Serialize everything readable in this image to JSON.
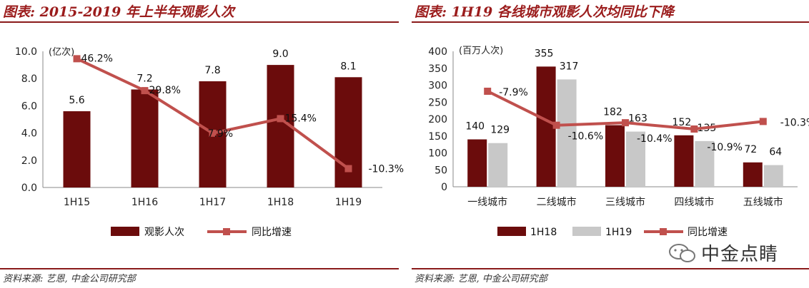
{
  "left": {
    "title": "图表: 2015-2019 年上半年观影人次",
    "source": "资料来源: 艺恩, 中金公司研究部",
    "chart_data": {
      "type": "bar",
      "categories": [
        "1H15",
        "1H16",
        "1H17",
        "1H18",
        "1H19"
      ],
      "series": [
        {
          "name": "观影人次",
          "type": "bar",
          "values": [
            5.6,
            7.2,
            7.8,
            9.0,
            8.1
          ],
          "color": "#6b0c0c",
          "labels": [
            "5.6",
            "7.2",
            "7.8",
            "9.0",
            "8.1"
          ]
        },
        {
          "name": "同比增速",
          "type": "line",
          "values": [
            46.2,
            29.8,
            7.9,
            15.4,
            -10.3
          ],
          "color": "#c0504d",
          "labels": [
            "46.2%",
            "29.8%",
            "7.9%",
            "15.4%",
            "-10.3%"
          ]
        }
      ],
      "ylabel": "(亿次)",
      "ylim": [
        0,
        10
      ],
      "yticks": [
        "0.0",
        "2.0",
        "4.0",
        "6.0",
        "8.0",
        "10.0"
      ],
      "legend": "bottom"
    }
  },
  "right": {
    "title": "图表: 1H19 各线城市观影人次均同比下降",
    "source": "资料来源: 艺恩, 中金公司研究部",
    "chart_data": {
      "type": "bar",
      "categories": [
        "一线城市",
        "二线城市",
        "三线城市",
        "四线城市",
        "五线城市"
      ],
      "series": [
        {
          "name": "1H18",
          "type": "bar",
          "values": [
            140,
            355,
            182,
            152,
            72
          ],
          "color": "#6b0c0c",
          "labels": [
            "140",
            "355",
            "182",
            "152",
            "72"
          ]
        },
        {
          "name": "1H19",
          "type": "bar",
          "values": [
            129,
            317,
            163,
            135,
            64
          ],
          "color": "#c8c8c8",
          "labels": [
            "129",
            "317",
            "163",
            "135",
            "64"
          ]
        },
        {
          "name": "同比增速",
          "type": "line",
          "values": [
            -7.9,
            -10.6,
            -10.4,
            -10.9,
            -10.3
          ],
          "color": "#c0504d",
          "labels": [
            "-7.9%",
            "-10.6%",
            "-10.4%",
            "-10.9%",
            "-10.3%"
          ]
        }
      ],
      "ylabel": "(百万人次)",
      "ylim": [
        0,
        400
      ],
      "yticks": [
        "0",
        "50",
        "100",
        "150",
        "200",
        "250",
        "300",
        "350",
        "400"
      ],
      "legend": "bottom"
    }
  },
  "watermark": {
    "text": "中金点睛",
    "icon": "wechat-icon"
  }
}
